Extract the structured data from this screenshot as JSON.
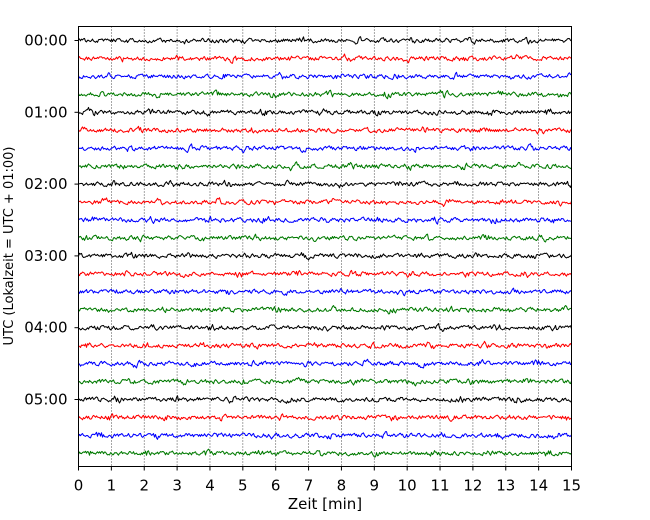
{
  "chart_data": {
    "type": "line",
    "title": "",
    "xlabel": "Zeit  [min]",
    "ylabel": "UTC (Lokalzeit = UTC + 01:00)",
    "xlim": [
      0,
      15
    ],
    "x_ticks": [
      "0",
      "1",
      "2",
      "3",
      "4",
      "5",
      "6",
      "7",
      "8",
      "9",
      "10",
      "11",
      "12",
      "13",
      "14",
      "15"
    ],
    "y_tick_labels": [
      "00:00",
      "01:00",
      "02:00",
      "03:00",
      "04:00",
      "05:00"
    ],
    "trace_interval_minutes": 15,
    "trace_count": 24,
    "trace_colors": [
      "#000000",
      "#ff0000",
      "#0000ff",
      "#007a00"
    ],
    "grid": "vertical dotted",
    "legend": "none"
  }
}
